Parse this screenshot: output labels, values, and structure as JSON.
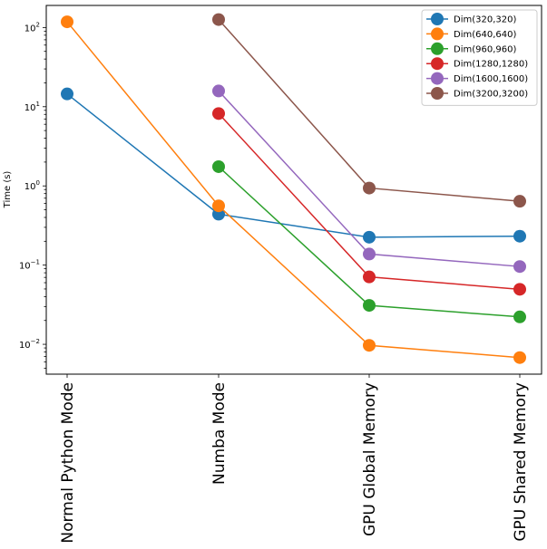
{
  "chart_data": {
    "type": "line",
    "title": "",
    "xlabel": "",
    "ylabel": "Time (s)",
    "yscale": "log",
    "ylim": [
      0.0042,
      190
    ],
    "categories": [
      "Normal Python Mode",
      "Numba Mode",
      "GPU Global Memory",
      "GPU Shared Memory"
    ],
    "y_ticks": [
      {
        "base": "10",
        "exp": "−2",
        "value": 0.01
      },
      {
        "base": "10",
        "exp": "−1",
        "value": 0.1
      },
      {
        "base": "10",
        "exp": "0",
        "value": 1
      },
      {
        "base": "10",
        "exp": "1",
        "value": 10
      },
      {
        "base": "10",
        "exp": "2",
        "value": 100
      }
    ],
    "legend_position": "top-right",
    "series": [
      {
        "name": "Dim(320,320)",
        "color": "#1f77b4",
        "values": [
          14.5,
          0.44,
          0.225,
          0.232
        ]
      },
      {
        "name": "Dim(640,640)",
        "color": "#ff7f0e",
        "values": [
          118,
          0.56,
          0.0097,
          0.0068
        ]
      },
      {
        "name": "Dim(960,960)",
        "color": "#2ca02c",
        "values": [
          null,
          1.75,
          0.031,
          0.0222
        ]
      },
      {
        "name": "Dim(1280,1280)",
        "color": "#d62728",
        "values": [
          null,
          8.2,
          0.071,
          0.0495
        ]
      },
      {
        "name": "Dim(1600,1600)",
        "color": "#9467bd",
        "values": [
          null,
          15.8,
          0.138,
          0.096
        ]
      },
      {
        "name": "Dim(3200,3200)",
        "color": "#8c564b",
        "values": [
          null,
          126,
          0.94,
          0.64
        ]
      }
    ]
  }
}
